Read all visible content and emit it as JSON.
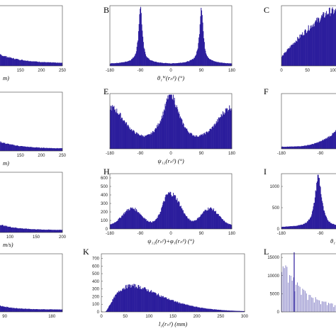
{
  "colors": {
    "bar": "#2b1c9c",
    "frame": "#444444",
    "background": "#ffffff"
  },
  "chart_data": [
    {
      "id": "A",
      "type": "bar",
      "panel_label": "",
      "xlabel": "m)",
      "xlim": [
        0,
        250
      ],
      "x_ticks": [
        "150",
        "200",
        "250"
      ],
      "x_tick_values": [
        150,
        200,
        250
      ],
      "y_ticks": [],
      "shape": "decay",
      "peak": 0.2,
      "decay_rate": 2.2
    },
    {
      "id": "B",
      "type": "bar",
      "panel_label": "B",
      "xlabel": "θ₁ᵂ(rₙᵈ) (°)",
      "xlim": [
        -180,
        180
      ],
      "x_ticks": [
        "-180",
        "-90",
        "0",
        "90",
        "180"
      ],
      "x_tick_values": [
        -180,
        -90,
        0,
        90,
        180
      ],
      "y_ticks": [],
      "shape": "twin_peaks",
      "peaks": [
        -90,
        90
      ]
    },
    {
      "id": "C",
      "type": "bar",
      "panel_label": "C",
      "xlabel": "",
      "xlim": [
        0,
        150
      ],
      "x_ticks": [
        "0",
        "50",
        "100"
      ],
      "x_tick_values": [
        0,
        50,
        100
      ],
      "y_ticks": [],
      "shape": "rise",
      "peak": 0.8
    },
    {
      "id": "D",
      "type": "bar",
      "panel_label": "",
      "xlabel": "m)",
      "xlim": [
        0,
        250
      ],
      "x_ticks": [
        "150",
        "200",
        "250"
      ],
      "x_tick_values": [
        150,
        200,
        250
      ],
      "y_ticks": [],
      "shape": "decay",
      "peak": 0.4,
      "decay_rate": 2.5
    },
    {
      "id": "E",
      "type": "bar",
      "panel_label": "E",
      "xlabel": "ψ₁₂(rₙᵈ) (°)",
      "xlim": [
        -180,
        180
      ],
      "x_ticks": [
        "-180",
        "-90",
        "0",
        "90",
        "180"
      ],
      "x_tick_values": [
        -180,
        -90,
        0,
        90,
        180
      ],
      "y_ticks": [],
      "shape": "three_humps",
      "peaks": [
        -180,
        0,
        180
      ]
    },
    {
      "id": "F",
      "type": "bar",
      "panel_label": "F",
      "xlabel": "",
      "xlim": [
        -180,
        0
      ],
      "x_ticks": [
        "-180",
        "-90",
        "0"
      ],
      "x_tick_values": [
        -180,
        -90,
        0
      ],
      "y_ticks": [],
      "shape": "rise_right",
      "peak": 0.5
    },
    {
      "id": "G",
      "type": "bar",
      "panel_label": "",
      "xlabel": "m/s)",
      "xlim": [
        0,
        200
      ],
      "x_ticks": [
        "50",
        "100",
        "150",
        "200"
      ],
      "x_tick_values": [
        50,
        100,
        150,
        200
      ],
      "y_ticks": [],
      "shape": "decay",
      "peak": 0.6,
      "decay_rate": 2.8
    },
    {
      "id": "H",
      "type": "bar",
      "panel_label": "H",
      "xlabel": "ψ₁₂(rₙᵈ)+φ₁(rₙᵈ) (°)",
      "xlim": [
        -180,
        180
      ],
      "x_ticks": [
        "-180",
        "-90",
        "0",
        "90",
        "180"
      ],
      "x_tick_values": [
        -180,
        -90,
        0,
        90,
        180
      ],
      "y_ticks": [
        "0",
        "100",
        "200",
        "300",
        "400",
        "500",
        "600"
      ],
      "y_tick_values": [
        0,
        100,
        200,
        300,
        400,
        500,
        600
      ],
      "ylim": [
        0,
        650
      ],
      "shape": "three_humps_h",
      "peaks": [
        -120,
        0,
        120
      ]
    },
    {
      "id": "I",
      "type": "bar",
      "panel_label": "I",
      "xlabel": "θ₁ᵂ",
      "xlim": [
        -180,
        0
      ],
      "x_ticks": [
        "-180",
        "-90",
        "0"
      ],
      "x_tick_values": [
        -180,
        -90,
        0
      ],
      "y_ticks": [
        "0",
        "500",
        "1000"
      ],
      "y_tick_values": [
        0,
        500,
        1000
      ],
      "ylim": [
        0,
        1300
      ],
      "shape": "single_peak",
      "peaks": [
        -90
      ]
    },
    {
      "id": "J",
      "type": "bar",
      "panel_label": "",
      "xlabel": "",
      "xlim": [
        0,
        200
      ],
      "x_ticks": [
        "90",
        "180"
      ],
      "x_tick_values": [
        90,
        180
      ],
      "y_ticks": [],
      "shape": "decay",
      "peak": 0.4,
      "decay_rate": 3.2
    },
    {
      "id": "K",
      "type": "bar",
      "panel_label": "K",
      "xlabel": "l₁(rₙᵈ) (mm)",
      "xlim": [
        0,
        300
      ],
      "x_ticks": [
        "0",
        "50",
        "100",
        "150",
        "200",
        "250",
        "300"
      ],
      "x_tick_values": [
        0,
        50,
        100,
        150,
        200,
        250,
        300
      ],
      "y_ticks": [
        "0",
        "100",
        "200",
        "300",
        "400",
        "500",
        "600",
        "700"
      ],
      "y_tick_values": [
        0,
        100,
        200,
        300,
        400,
        500,
        600,
        700
      ],
      "ylim": [
        0,
        760
      ],
      "shape": "skewed",
      "mode": 55
    },
    {
      "id": "L",
      "type": "bar",
      "panel_label": "L",
      "xlabel": "",
      "xlim": [
        0,
        1
      ],
      "x_ticks": [],
      "x_tick_values": [],
      "y_ticks": [
        "0",
        "5000",
        "10000",
        "15000"
      ],
      "y_tick_values": [
        0,
        5000,
        10000,
        15000
      ],
      "ylim": [
        0,
        16000
      ],
      "shape": "sparse_decay"
    }
  ]
}
